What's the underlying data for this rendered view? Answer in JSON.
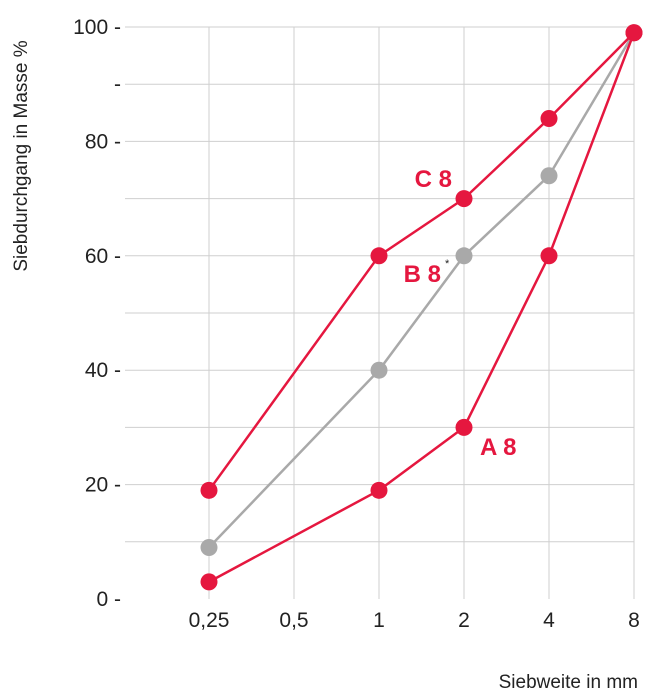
{
  "chart_data": {
    "type": "line",
    "x_categories": [
      "0,25",
      "0,5",
      "1",
      "2",
      "4",
      "8"
    ],
    "y_ticks": [
      {
        "value": 0,
        "label": "0 -"
      },
      {
        "value": 10,
        "label": ""
      },
      {
        "value": 20,
        "label": "20 -"
      },
      {
        "value": 30,
        "label": ""
      },
      {
        "value": 40,
        "label": "40 -"
      },
      {
        "value": 50,
        "label": ""
      },
      {
        "value": 60,
        "label": "60 -"
      },
      {
        "value": 70,
        "label": ""
      },
      {
        "value": 80,
        "label": "80 -"
      },
      {
        "value": 90,
        "label": "-"
      },
      {
        "value": 100,
        "label": "100 -"
      }
    ],
    "ylim": [
      0,
      100
    ],
    "xlabel": "Siebweite in mm",
    "ylabel": "Siebdurchgang in Masse %",
    "grid": true,
    "series": [
      {
        "name": "C 8",
        "color": "#e5173f",
        "points": [
          {
            "x": "0,25",
            "y": 19
          },
          {
            "x": "1",
            "y": 60
          },
          {
            "x": "2",
            "y": 70
          },
          {
            "x": "4",
            "y": 84
          },
          {
            "x": "8",
            "y": 99
          }
        ]
      },
      {
        "name": "B 8",
        "superscript": "*",
        "color": "#a9a9a9",
        "points": [
          {
            "x": "0,25",
            "y": 9
          },
          {
            "x": "1",
            "y": 40
          },
          {
            "x": "2",
            "y": 60
          },
          {
            "x": "4",
            "y": 74
          },
          {
            "x": "8",
            "y": 99
          }
        ]
      },
      {
        "name": "A 8",
        "color": "#e5173f",
        "points": [
          {
            "x": "0,25",
            "y": 3
          },
          {
            "x": "1",
            "y": 19
          },
          {
            "x": "2",
            "y": 30
          },
          {
            "x": "4",
            "y": 60
          },
          {
            "x": "8",
            "y": 99
          }
        ]
      }
    ]
  }
}
